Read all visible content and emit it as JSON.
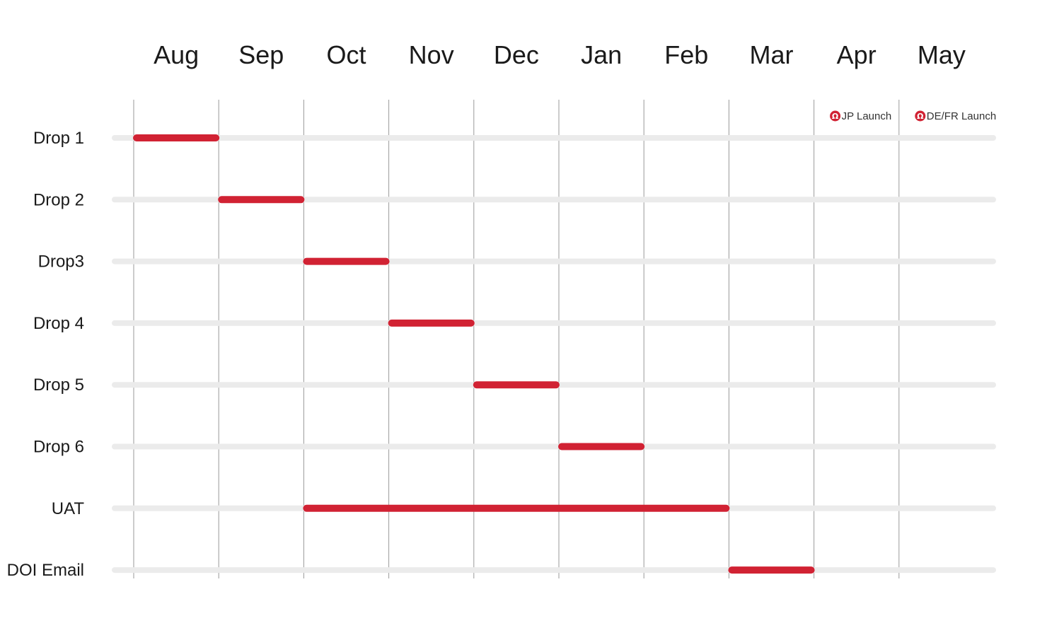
{
  "chart_data": {
    "type": "gantt",
    "months": [
      "Aug",
      "Sep",
      "Oct",
      "Nov",
      "Dec",
      "Jan",
      "Feb",
      "Mar",
      "Apr",
      "May"
    ],
    "tasks": [
      {
        "label": "Drop 1",
        "start": "Aug",
        "end": "Sep"
      },
      {
        "label": "Drop 2",
        "start": "Sep",
        "end": "Oct"
      },
      {
        "label": "Drop3",
        "start": "Oct",
        "end": "Nov"
      },
      {
        "label": "Drop 4",
        "start": "Nov",
        "end": "Dec"
      },
      {
        "label": "Drop 5",
        "start": "Dec",
        "end": "Jan"
      },
      {
        "label": "Drop 6",
        "start": "Jan",
        "end": "Feb"
      },
      {
        "label": "UAT",
        "start": "Oct",
        "end": "Mar"
      },
      {
        "label": "DOI Email",
        "start": "Mar",
        "end": "Apr"
      }
    ],
    "milestones": [
      {
        "label": "JP Launch",
        "month": "Apr",
        "icon": "lululemon-logo-icon"
      },
      {
        "label": "DE/FR Launch",
        "month": "May",
        "icon": "lululemon-logo-icon"
      }
    ],
    "colors": {
      "bar": "#d12233",
      "track": "#ebebeb",
      "gridline": "#9a9a9a",
      "text": "#1a1a1a"
    },
    "grid": true
  }
}
